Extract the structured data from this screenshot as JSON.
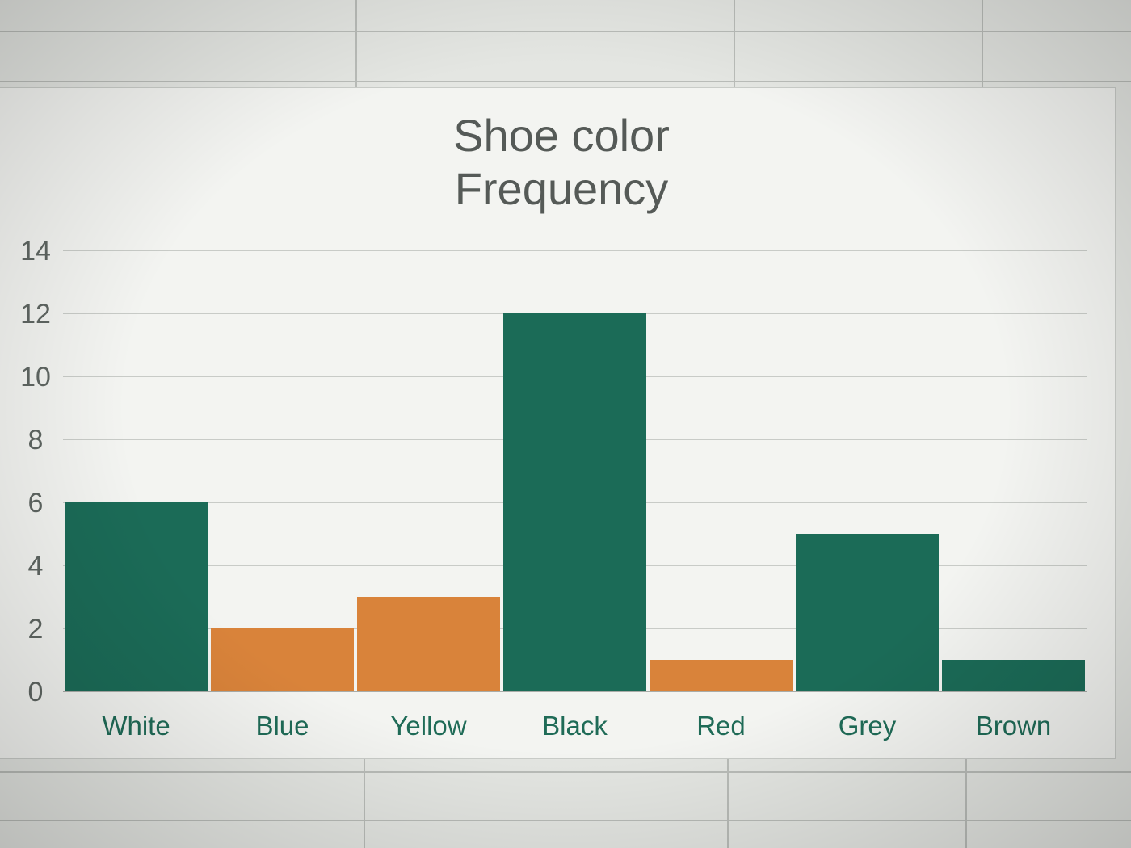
{
  "chart_data": {
    "type": "bar",
    "title": "Shoe color Frequency",
    "title_lines": [
      "Shoe color",
      "Frequency"
    ],
    "categories": [
      "White",
      "Blue",
      "Yellow",
      "Black",
      "Red",
      "Grey",
      "Brown"
    ],
    "values": [
      6,
      2,
      3,
      12,
      1,
      5,
      1
    ],
    "bar_colors": [
      "#1b6b57",
      "#d9833a",
      "#d9833a",
      "#1b6b57",
      "#d9833a",
      "#1b6b57",
      "#1b6b57"
    ],
    "y_ticks": [
      "0",
      "2",
      "4",
      "6",
      "8",
      "10",
      "12",
      "14"
    ],
    "ylim": [
      0,
      14
    ],
    "grid": true,
    "legend": "none",
    "xlabel": "",
    "ylabel": ""
  }
}
